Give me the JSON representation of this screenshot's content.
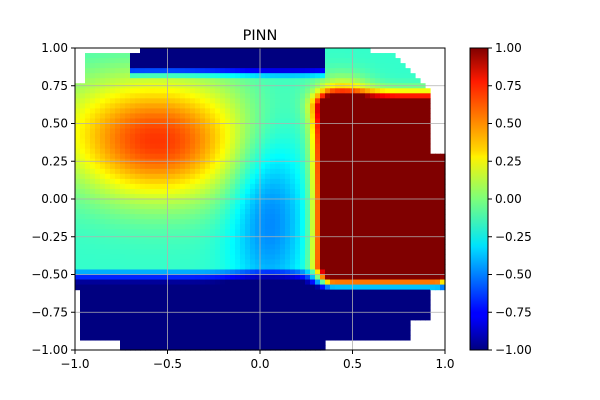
{
  "chart_data": {
    "type": "heatmap",
    "title": "PINN",
    "xlabel": "",
    "ylabel": "",
    "xlim": [
      -1.0,
      1.0
    ],
    "ylim": [
      -1.0,
      1.0
    ],
    "x_ticks": [
      "−1.0",
      "−0.5",
      "0.0",
      "0.5",
      "1.0"
    ],
    "x_tick_values": [
      -1.0,
      -0.5,
      0.0,
      0.5,
      1.0
    ],
    "y_ticks": [
      "1.00",
      "0.75",
      "0.50",
      "0.25",
      "0.00",
      "−0.25",
      "−0.50",
      "−0.75",
      "−1.00"
    ],
    "y_tick_values": [
      1.0,
      0.75,
      0.5,
      0.25,
      0.0,
      -0.25,
      -0.5,
      -0.75,
      -1.0
    ],
    "grid": true,
    "colormap": "jet",
    "colorbar": {
      "range": [
        -1.0,
        1.0
      ],
      "ticks": [
        "1.00",
        "0.75",
        "0.50",
        "0.25",
        "0.00",
        "−0.25",
        "−0.50",
        "−0.75",
        "−1.00"
      ],
      "tick_values": [
        1.0,
        0.75,
        0.5,
        0.25,
        0.0,
        -0.25,
        -0.5,
        -0.75,
        -1.0
      ]
    },
    "features": [
      {
        "kind": "high plateau (≥1.0)",
        "x_range": [
          0.4,
          0.95
        ],
        "y_range": [
          -0.5,
          0.6
        ],
        "value": 1.0
      },
      {
        "kind": "moderate high",
        "center": [
          -0.55,
          0.3
        ],
        "value": 0.35
      },
      {
        "kind": "low region (≤-1.0)",
        "x_range": [
          -0.95,
          0.95
        ],
        "y_range": [
          -1.0,
          -0.6
        ],
        "value": -1.0
      },
      {
        "kind": "low region top edge",
        "x_range": [
          -0.65,
          0.3
        ],
        "y_range": [
          0.85,
          1.0
        ],
        "value": -1.0
      }
    ]
  }
}
